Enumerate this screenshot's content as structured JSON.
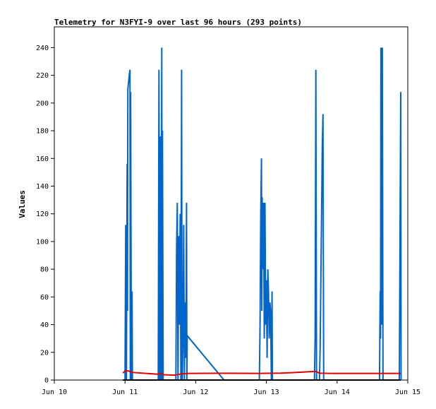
{
  "chart_data": {
    "type": "line",
    "title": "Telemetry for N3FYI-9 over last 96 hours (293 points)",
    "xlabel": "",
    "ylabel": "Values",
    "x_ticks": [
      {
        "day": 10,
        "label": "Jun 10"
      },
      {
        "day": 11,
        "label": "Jun 11"
      },
      {
        "day": 12,
        "label": "Jun 12"
      },
      {
        "day": 13,
        "label": "Jun 13"
      },
      {
        "day": 14,
        "label": "Jun 14"
      },
      {
        "day": 15,
        "label": "Jun 15"
      }
    ],
    "xlim": [
      10,
      15
    ],
    "ylim": [
      0,
      255
    ],
    "y_ticks": [
      0,
      20,
      40,
      60,
      80,
      100,
      120,
      140,
      160,
      180,
      200,
      220,
      240
    ],
    "grid": false,
    "series": [
      {
        "color": "#0066cc",
        "points": [
          [
            11.0,
            0
          ],
          [
            11.01,
            112
          ],
          [
            11.02,
            0
          ],
          [
            11.03,
            156
          ],
          [
            11.035,
            50
          ],
          [
            11.04,
            210
          ],
          [
            11.05,
            215
          ],
          [
            11.06,
            220
          ],
          [
            11.07,
            224
          ],
          [
            11.075,
            0
          ],
          [
            11.08,
            208
          ],
          [
            11.09,
            0
          ],
          [
            11.1,
            64
          ],
          [
            11.105,
            0
          ],
          [
            11.47,
            0
          ],
          [
            11.48,
            224
          ],
          [
            11.49,
            0
          ],
          [
            11.5,
            176
          ],
          [
            11.51,
            0
          ],
          [
            11.52,
            240
          ],
          [
            11.525,
            0
          ],
          [
            11.53,
            180
          ],
          [
            11.54,
            0
          ],
          [
            11.72,
            0
          ],
          [
            11.73,
            96
          ],
          [
            11.74,
            128
          ],
          [
            11.75,
            0
          ],
          [
            11.76,
            104
          ],
          [
            11.77,
            40
          ],
          [
            11.78,
            120
          ],
          [
            11.79,
            0
          ],
          [
            11.8,
            224
          ],
          [
            11.805,
            56
          ],
          [
            11.81,
            0
          ],
          [
            11.82,
            32
          ],
          [
            11.83,
            112
          ],
          [
            11.84,
            0
          ],
          [
            11.85,
            56
          ],
          [
            11.86,
            16
          ],
          [
            11.87,
            128
          ],
          [
            11.875,
            0
          ],
          [
            11.88,
            32
          ],
          [
            12.4,
            0
          ],
          [
            12.9,
            0
          ],
          [
            12.91,
            40
          ],
          [
            12.92,
            120
          ],
          [
            12.93,
            160
          ],
          [
            12.935,
            50
          ],
          [
            12.94,
            132
          ],
          [
            12.95,
            80
          ],
          [
            12.96,
            128
          ],
          [
            12.97,
            30
          ],
          [
            12.98,
            128
          ],
          [
            12.99,
            40
          ],
          [
            13.0,
            72
          ],
          [
            13.01,
            16
          ],
          [
            13.02,
            80
          ],
          [
            13.03,
            64
          ],
          [
            13.04,
            30
          ],
          [
            13.05,
            56
          ],
          [
            13.06,
            48
          ],
          [
            13.07,
            0
          ],
          [
            13.08,
            64
          ],
          [
            13.085,
            0
          ],
          [
            13.68,
            0
          ],
          [
            13.69,
            32
          ],
          [
            13.7,
            224
          ],
          [
            13.71,
            0
          ],
          [
            13.75,
            0
          ],
          [
            13.76,
            24
          ],
          [
            13.77,
            72
          ],
          [
            13.78,
            120
          ],
          [
            13.79,
            168
          ],
          [
            13.8,
            192
          ],
          [
            13.805,
            88
          ],
          [
            13.81,
            0
          ],
          [
            14.6,
            0
          ],
          [
            14.61,
            64
          ],
          [
            14.615,
            30
          ],
          [
            14.62,
            240
          ],
          [
            14.63,
            40
          ],
          [
            14.64,
            240
          ],
          [
            14.65,
            0
          ],
          [
            14.88,
            0
          ],
          [
            14.89,
            104
          ],
          [
            14.9,
            208
          ],
          [
            14.905,
            0
          ]
        ]
      },
      {
        "color": "#e00000",
        "points": [
          [
            10.97,
            5
          ],
          [
            11.0,
            6.6
          ],
          [
            11.05,
            6.6
          ],
          [
            11.1,
            5.5
          ],
          [
            11.3,
            4.8
          ],
          [
            11.47,
            4.2
          ],
          [
            11.5,
            5
          ],
          [
            11.55,
            3.8
          ],
          [
            11.7,
            3.5
          ],
          [
            11.75,
            4
          ],
          [
            11.8,
            4.5
          ],
          [
            11.9,
            4.8
          ],
          [
            12.4,
            4.9
          ],
          [
            12.9,
            4.8
          ],
          [
            13.2,
            5
          ],
          [
            13.4,
            5.4
          ],
          [
            13.6,
            6
          ],
          [
            13.7,
            6.2
          ],
          [
            13.75,
            5
          ],
          [
            13.9,
            4.8
          ],
          [
            14.4,
            4.8
          ],
          [
            14.9,
            4.8
          ]
        ]
      },
      {
        "color": "#000000",
        "points": [
          [
            10.97,
            0
          ],
          [
            14.9,
            0
          ]
        ]
      }
    ]
  }
}
